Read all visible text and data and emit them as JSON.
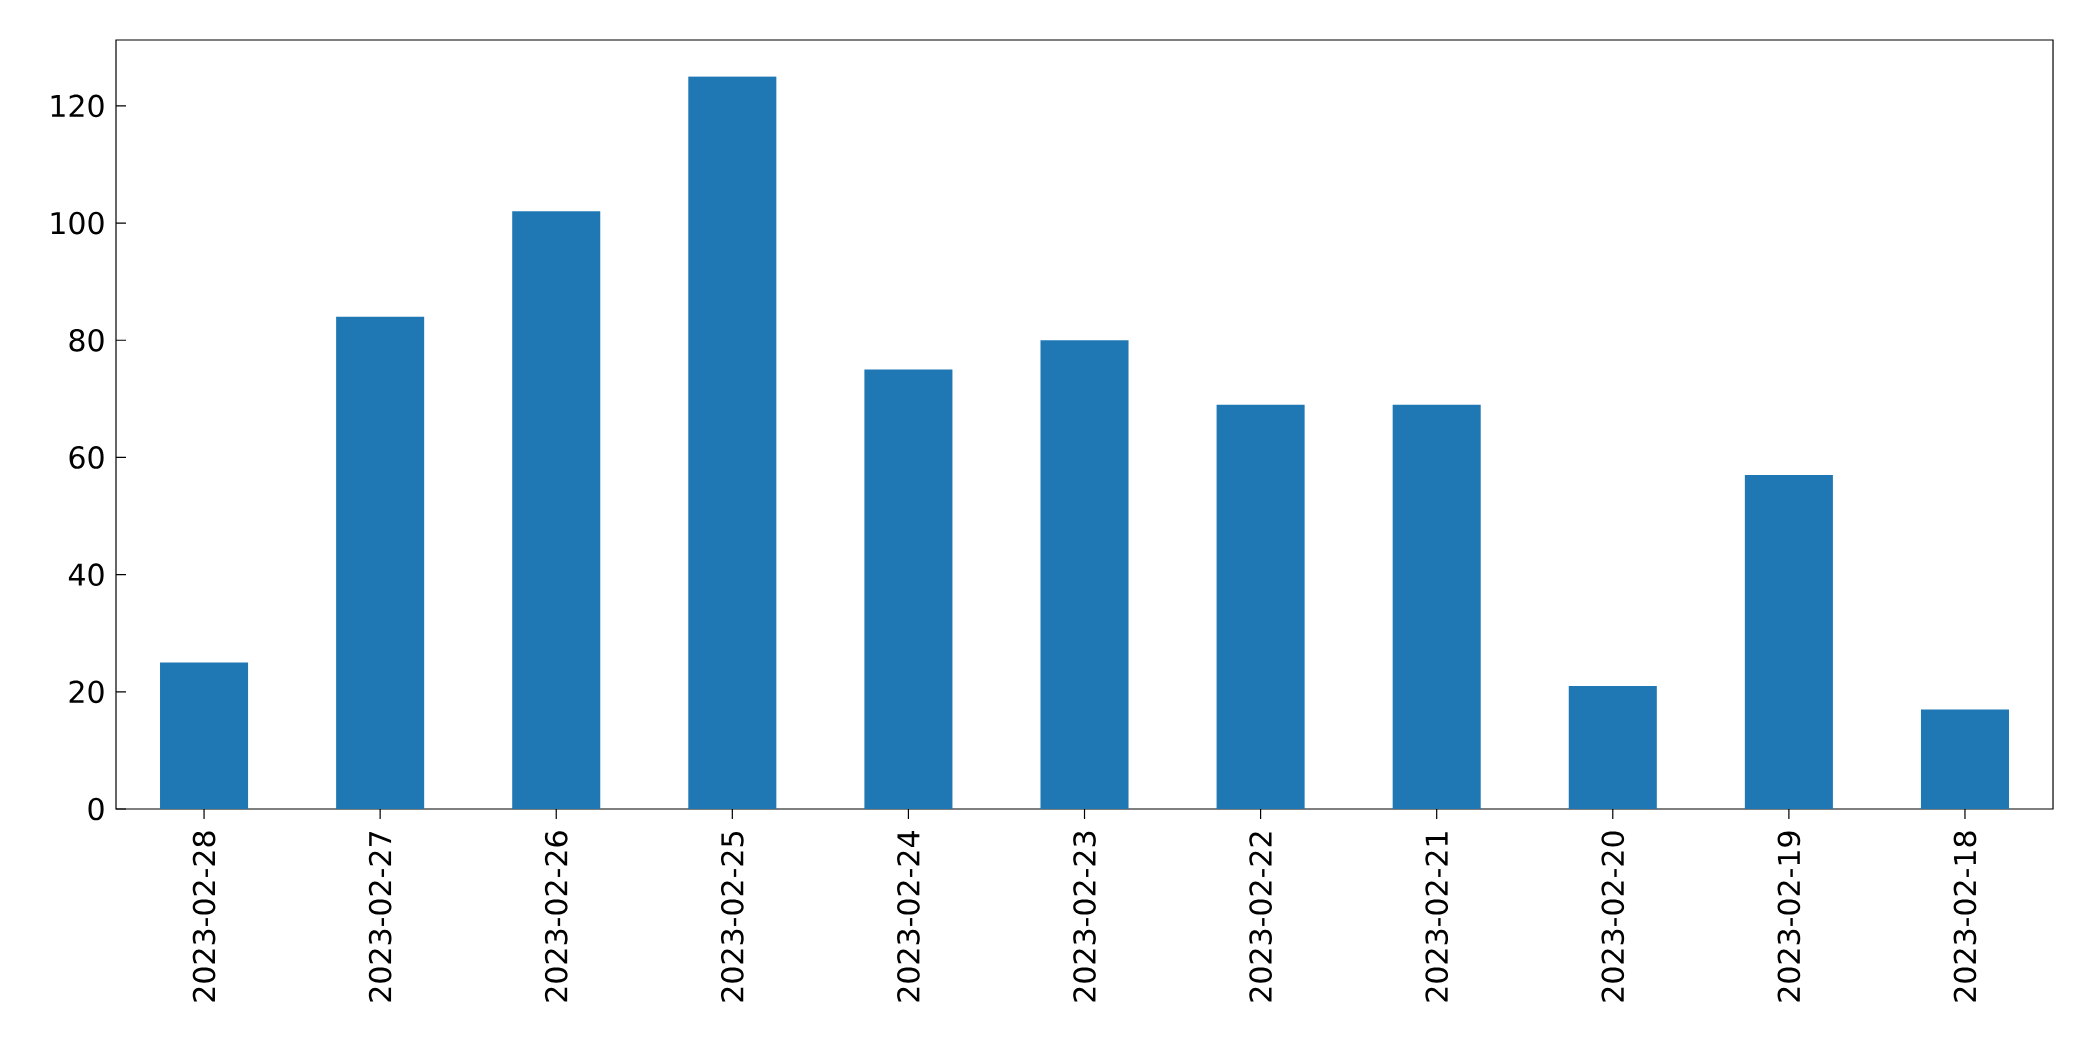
{
  "chart_data": {
    "type": "bar",
    "categories": [
      "2023-02-28",
      "2023-02-27",
      "2023-02-26",
      "2023-02-25",
      "2023-02-24",
      "2023-02-23",
      "2023-02-22",
      "2023-02-21",
      "2023-02-20",
      "2023-02-19",
      "2023-02-18"
    ],
    "values": [
      25,
      84,
      102,
      125,
      75,
      80,
      69,
      69,
      21,
      57,
      17
    ],
    "color": "#1f77b4",
    "ylim": [
      0,
      131.25
    ],
    "yticks": [
      0,
      20,
      40,
      60,
      80,
      100,
      120
    ]
  }
}
